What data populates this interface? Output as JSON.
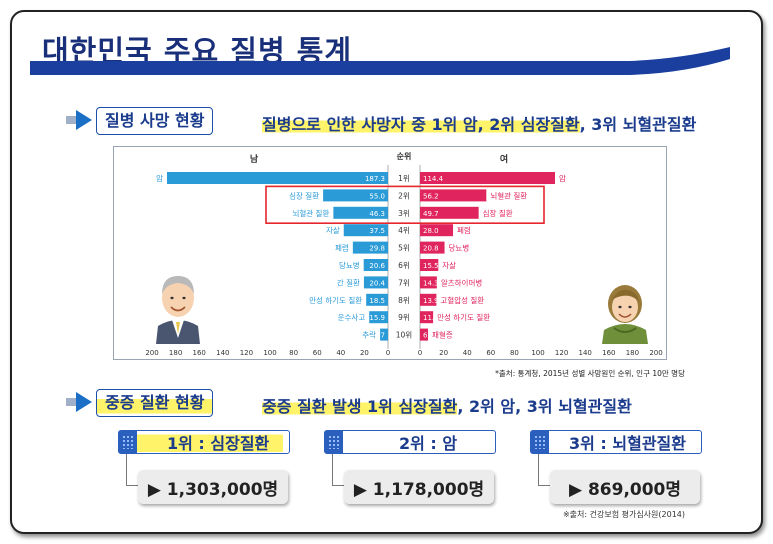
{
  "main_title": "대한민국 주요 질병 통계",
  "colors": {
    "male": "#2b9bd8",
    "female": "#e0245e",
    "title": "#1a2f7a",
    "highlight": "#fff36a",
    "accent_blue": "#1b4fa8",
    "box_red": "#e5262d"
  },
  "section1": {
    "label": "질병 사망 현황",
    "subtitle_prefix": "질병으로 인한 사망자 중 ",
    "subtitle_rank1": "1위 암",
    "subtitle_sep1": ", ",
    "subtitle_rank2": "2위 심장질환",
    "subtitle_sep2": ", ",
    "subtitle_rank3": "3위 뇌혈관질환"
  },
  "section2": {
    "label": "중증 질환 현황",
    "subtitle_prefix": "중증 질환 발생 ",
    "subtitle_rank1": "1위 심장질환",
    "subtitle_rest": ", 2위 암, 3위 뇌혈관질환"
  },
  "chart_data": {
    "type": "bar",
    "male_header": "남",
    "female_header": "여",
    "rank_header": "순위",
    "axis_ticks": [
      200,
      180,
      160,
      140,
      120,
      100,
      80,
      60,
      40,
      20,
      0
    ],
    "axis_ticks_right": [
      0,
      20,
      40,
      60,
      80,
      100,
      120,
      140,
      160,
      180,
      200
    ],
    "xlim": [
      0,
      200
    ],
    "ranks": [
      "1위",
      "2위",
      "3위",
      "4위",
      "5위",
      "6위",
      "7위",
      "8위",
      "9위",
      "10위"
    ],
    "series": [
      {
        "name": "남",
        "categories": [
          "암",
          "심장 질환",
          "뇌혈관 질환",
          "자살",
          "폐렴",
          "당뇨병",
          "간 질환",
          "만성 하기도 질환",
          "운수사고",
          "추락"
        ],
        "values": [
          187.3,
          55.0,
          46.3,
          37.5,
          29.8,
          20.6,
          20.4,
          18.5,
          15.9,
          6.7
        ],
        "value_labels": [
          "187.3",
          "55.0",
          "46.3",
          "37.5",
          "29.8",
          "20.6",
          "20.4",
          "18.5",
          "15.9",
          "6.7"
        ]
      },
      {
        "name": "여",
        "categories": [
          "암",
          "뇌혈관 질환",
          "심장 질환",
          "폐렴",
          "당뇨병",
          "자살",
          "알츠하이머병",
          "고혈압성 질환",
          "만성 하기도 질환",
          "패혈증"
        ],
        "values": [
          114.4,
          56.2,
          49.7,
          28.0,
          20.8,
          15.5,
          14.3,
          13.9,
          11.1,
          6.8
        ],
        "value_labels": [
          "114.4",
          "56.2",
          "49.7",
          "28.0",
          "20.8",
          "15.5",
          "14.3",
          "13.9",
          "11.1",
          "6.8"
        ]
      }
    ]
  },
  "source_chart": "*출처: 통계청, 2015년 성별 사망원인 순위, 인구 10만 명당",
  "severe_ranks": [
    {
      "label": "1위 : 심장질환",
      "value": "▶ 1,303,000명"
    },
    {
      "label": "2위 : 암",
      "value": "▶ 1,178,000명"
    },
    {
      "label": "3위 : 뇌혈관질환",
      "value": "▶ 869,000명"
    }
  ],
  "source_bottom": "※출처: 건강보험 평가심사원(2014)"
}
